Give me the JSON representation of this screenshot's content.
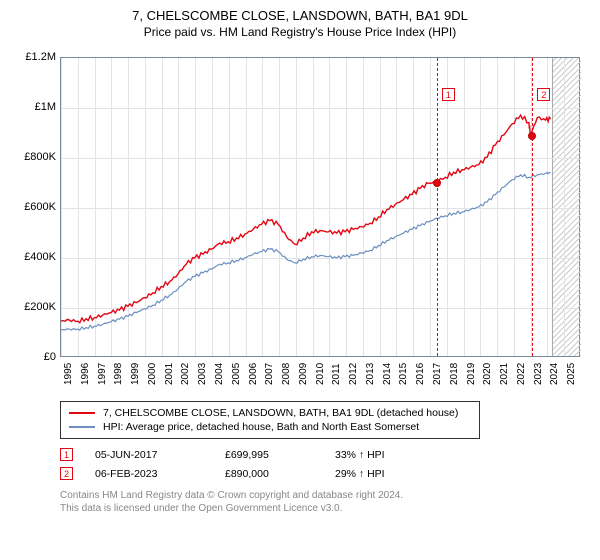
{
  "title": "7, CHELSCOMBE CLOSE, LANSDOWN, BATH, BA1 9DL",
  "subtitle": "Price paid vs. HM Land Registry's House Price Index (HPI)",
  "chart": {
    "background_color": "#ffffff",
    "grid_color": "#e2e4e7",
    "border_color": "#7d8a96",
    "xlim": [
      1995,
      2026
    ],
    "ylim": [
      0,
      1200000
    ],
    "yticks": [
      {
        "v": 0,
        "label": "£0"
      },
      {
        "v": 200000,
        "label": "£200K"
      },
      {
        "v": 400000,
        "label": "£400K"
      },
      {
        "v": 600000,
        "label": "£600K"
      },
      {
        "v": 800000,
        "label": "£800K"
      },
      {
        "v": 1000000,
        "label": "£1M"
      },
      {
        "v": 1200000,
        "label": "£1.2M"
      }
    ],
    "xticks": [
      1995,
      1996,
      1997,
      1998,
      1999,
      2000,
      2001,
      2002,
      2003,
      2004,
      2005,
      2006,
      2007,
      2008,
      2009,
      2010,
      2011,
      2012,
      2013,
      2014,
      2015,
      2016,
      2017,
      2018,
      2019,
      2020,
      2021,
      2022,
      2023,
      2024,
      2025
    ],
    "hatched_start": 2024.3,
    "series": [
      {
        "name": "price_paid",
        "color": "#e30613",
        "width": 1.4,
        "data": [
          [
            1995,
            140000
          ],
          [
            1995.5,
            145000
          ],
          [
            1996,
            140000
          ],
          [
            1996.5,
            150000
          ],
          [
            1997,
            155000
          ],
          [
            1997.5,
            165000
          ],
          [
            1998,
            175000
          ],
          [
            1998.5,
            185000
          ],
          [
            1999,
            200000
          ],
          [
            1999.5,
            215000
          ],
          [
            2000,
            235000
          ],
          [
            2000.5,
            255000
          ],
          [
            2001,
            280000
          ],
          [
            2001.5,
            300000
          ],
          [
            2002,
            330000
          ],
          [
            2002.5,
            370000
          ],
          [
            2003,
            395000
          ],
          [
            2003.5,
            410000
          ],
          [
            2004,
            430000
          ],
          [
            2004.5,
            455000
          ],
          [
            2005,
            460000
          ],
          [
            2005.5,
            475000
          ],
          [
            2006,
            490000
          ],
          [
            2006.5,
            510000
          ],
          [
            2007,
            530000
          ],
          [
            2007.5,
            545000
          ],
          [
            2008,
            530000
          ],
          [
            2008.5,
            480000
          ],
          [
            2009,
            450000
          ],
          [
            2009.5,
            475000
          ],
          [
            2010,
            500000
          ],
          [
            2010.5,
            505000
          ],
          [
            2011,
            500000
          ],
          [
            2011.5,
            495000
          ],
          [
            2012,
            500000
          ],
          [
            2012.5,
            510000
          ],
          [
            2013,
            520000
          ],
          [
            2013.5,
            535000
          ],
          [
            2014,
            560000
          ],
          [
            2014.5,
            590000
          ],
          [
            2015,
            610000
          ],
          [
            2015.5,
            630000
          ],
          [
            2016,
            650000
          ],
          [
            2016.5,
            675000
          ],
          [
            2017,
            695000
          ],
          [
            2017.4,
            700000
          ],
          [
            2018,
            720000
          ],
          [
            2018.5,
            740000
          ],
          [
            2019,
            750000
          ],
          [
            2019.5,
            760000
          ],
          [
            2020,
            770000
          ],
          [
            2020.5,
            800000
          ],
          [
            2021,
            850000
          ],
          [
            2021.5,
            890000
          ],
          [
            2022,
            935000
          ],
          [
            2022.5,
            970000
          ],
          [
            2023,
            940000
          ],
          [
            2023.1,
            890000
          ],
          [
            2023.5,
            960000
          ],
          [
            2024,
            950000
          ],
          [
            2024.3,
            955000
          ]
        ]
      },
      {
        "name": "hpi",
        "color": "#6b8fbf",
        "width": 1.2,
        "data": [
          [
            1995,
            105000
          ],
          [
            1995.5,
            108000
          ],
          [
            1996,
            108000
          ],
          [
            1996.5,
            115000
          ],
          [
            1997,
            120000
          ],
          [
            1997.5,
            128000
          ],
          [
            1998,
            138000
          ],
          [
            1998.5,
            148000
          ],
          [
            1999,
            160000
          ],
          [
            1999.5,
            175000
          ],
          [
            2000,
            190000
          ],
          [
            2000.5,
            205000
          ],
          [
            2001,
            225000
          ],
          [
            2001.5,
            245000
          ],
          [
            2002,
            270000
          ],
          [
            2002.5,
            300000
          ],
          [
            2003,
            320000
          ],
          [
            2003.5,
            335000
          ],
          [
            2004,
            350000
          ],
          [
            2004.5,
            370000
          ],
          [
            2005,
            375000
          ],
          [
            2005.5,
            385000
          ],
          [
            2006,
            395000
          ],
          [
            2006.5,
            410000
          ],
          [
            2007,
            420000
          ],
          [
            2007.5,
            430000
          ],
          [
            2008,
            420000
          ],
          [
            2008.5,
            390000
          ],
          [
            2009,
            375000
          ],
          [
            2009.5,
            390000
          ],
          [
            2010,
            400000
          ],
          [
            2010.5,
            405000
          ],
          [
            2011,
            400000
          ],
          [
            2011.5,
            395000
          ],
          [
            2012,
            400000
          ],
          [
            2012.5,
            405000
          ],
          [
            2013,
            415000
          ],
          [
            2013.5,
            425000
          ],
          [
            2014,
            445000
          ],
          [
            2014.5,
            465000
          ],
          [
            2015,
            480000
          ],
          [
            2015.5,
            495000
          ],
          [
            2016,
            510000
          ],
          [
            2016.5,
            525000
          ],
          [
            2017,
            540000
          ],
          [
            2017.5,
            555000
          ],
          [
            2018,
            565000
          ],
          [
            2018.5,
            575000
          ],
          [
            2019,
            580000
          ],
          [
            2019.5,
            590000
          ],
          [
            2020,
            600000
          ],
          [
            2020.5,
            620000
          ],
          [
            2021,
            650000
          ],
          [
            2021.5,
            680000
          ],
          [
            2022,
            710000
          ],
          [
            2022.5,
            730000
          ],
          [
            2023,
            720000
          ],
          [
            2023.5,
            730000
          ],
          [
            2024,
            735000
          ],
          [
            2024.3,
            738000
          ]
        ]
      }
    ],
    "markers": [
      {
        "id": "1",
        "x": 2017.4,
        "y": 700000,
        "label_x": 2017.7,
        "label_y": 1080000
      },
      {
        "id": "2",
        "x": 2023.1,
        "y": 890000,
        "label_x": 2023.4,
        "label_y": 1080000
      }
    ]
  },
  "legend": [
    {
      "color": "#e30613",
      "text": "7, CHELSCOMBE CLOSE, LANSDOWN, BATH, BA1 9DL (detached house)"
    },
    {
      "color": "#6b8fbf",
      "text": "HPI: Average price, detached house, Bath and North East Somerset"
    }
  ],
  "transactions": [
    {
      "badge": "1",
      "date": "05-JUN-2017",
      "price": "£699,995",
      "delta": "33% ↑ HPI"
    },
    {
      "badge": "2",
      "date": "06-FEB-2023",
      "price": "£890,000",
      "delta": "29% ↑ HPI"
    }
  ],
  "footer_line1": "Contains HM Land Registry data © Crown copyright and database right 2024.",
  "footer_line2": "This data is licensed under the Open Government Licence v3.0."
}
